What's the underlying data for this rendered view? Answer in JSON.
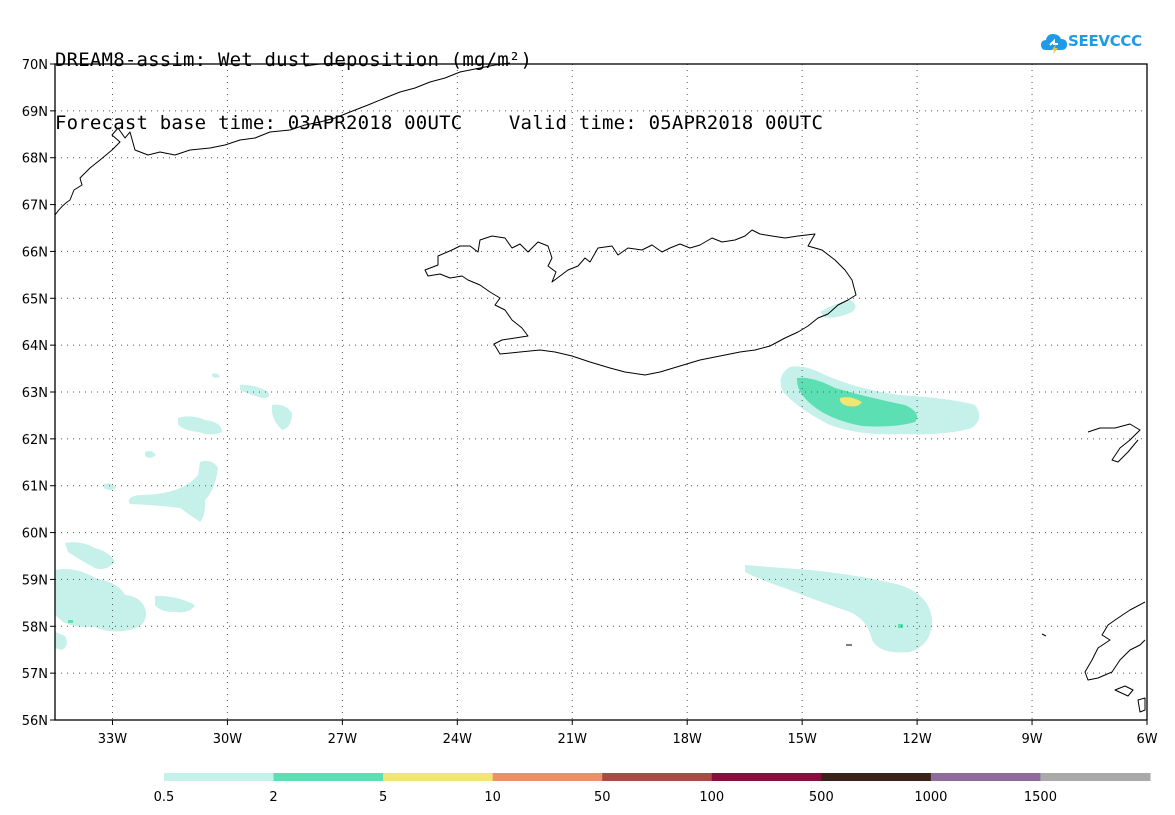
{
  "title": {
    "line1": "DREAM8-assim: Wet dust deposition (mg/m²)",
    "line2": "Forecast base time: 03APR2018 00UTC    Valid time: 05APR2018 00UTC"
  },
  "logo": {
    "text": "SEEVCCC",
    "icon": "cloud-icon",
    "color": "#1e9be6"
  },
  "map": {
    "lon_range": [
      -34.5,
      -6
    ],
    "lat_range": [
      56,
      70
    ],
    "lon_ticks": [
      {
        "value": -33,
        "label": "33W"
      },
      {
        "value": -30,
        "label": "30W"
      },
      {
        "value": -27,
        "label": "27W"
      },
      {
        "value": -24,
        "label": "24W"
      },
      {
        "value": -21,
        "label": "21W"
      },
      {
        "value": -18,
        "label": "18W"
      },
      {
        "value": -15,
        "label": "15W"
      },
      {
        "value": -12,
        "label": "12W"
      },
      {
        "value": -9,
        "label": "9W"
      },
      {
        "value": -6,
        "label": "6W"
      }
    ],
    "lat_ticks": [
      {
        "value": 70,
        "label": "70N"
      },
      {
        "value": 69,
        "label": "69N"
      },
      {
        "value": 68,
        "label": "68N"
      },
      {
        "value": 67,
        "label": "67N"
      },
      {
        "value": 66,
        "label": "66N"
      },
      {
        "value": 65,
        "label": "65N"
      },
      {
        "value": 64,
        "label": "64N"
      },
      {
        "value": 63,
        "label": "63N"
      },
      {
        "value": 62,
        "label": "62N"
      },
      {
        "value": 61,
        "label": "61N"
      },
      {
        "value": 60,
        "label": "60N"
      },
      {
        "value": 59,
        "label": "59N"
      },
      {
        "value": 58,
        "label": "58N"
      },
      {
        "value": 57,
        "label": "57N"
      },
      {
        "value": 56,
        "label": "56N"
      }
    ],
    "grid": "dotted"
  },
  "legend": {
    "labels": [
      "0.5",
      "2",
      "5",
      "10",
      "50",
      "100",
      "500",
      "1000",
      "1500"
    ],
    "colors": [
      "#c6f0ea",
      "#5ddfb4",
      "#f2e673",
      "#ec8f6a",
      "#a84b44",
      "#8a0e3c",
      "#3a2419",
      "#8f6b9b",
      "#a9a9a9"
    ]
  }
}
